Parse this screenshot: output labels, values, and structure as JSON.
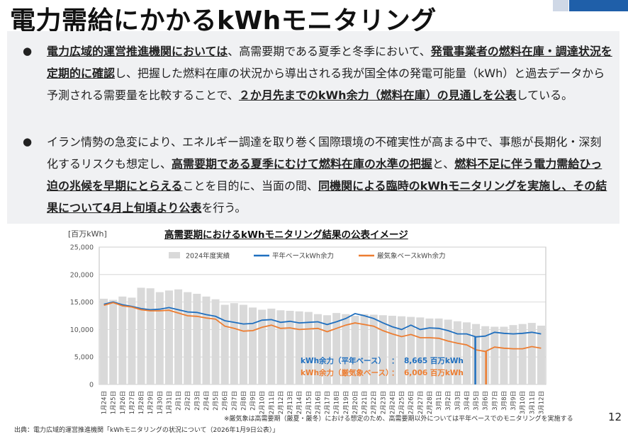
{
  "page_title": "電力需給にかかるkWhモニタリング",
  "bullets": [
    [
      {
        "t": "電力広域的運営推進機関においては",
        "b": true
      },
      {
        "t": "、高需要期である夏季と冬季において、",
        "b": false
      },
      {
        "t": "発電事業者の燃料在庫・調達状況を定期的に確認",
        "b": true
      },
      {
        "t": "し、把握した燃料在庫の状況から導出される我が国全体の発電可能量（kWh）と過去データから予測される需要量を比較することで、",
        "b": false
      },
      {
        "t": "２か月先までのkWh余力（燃料在庫）の見通しを公表",
        "b": true
      },
      {
        "t": "している。",
        "b": false
      }
    ],
    [
      {
        "t": "イラン情勢の急変により、エネルギー調達を取り巻く国際環境の不確実性が高まる中で、事態が長期化・深刻化するリスクも想定し、",
        "b": false
      },
      {
        "t": "高需要期である夏季にむけて燃料在庫の水準の把握",
        "b": true
      },
      {
        "t": "と、",
        "b": false
      },
      {
        "t": "燃料不足に伴う電力需給ひっ迫の兆候を早期にとらえる",
        "b": true
      },
      {
        "t": "ことを目的に、当面の間、",
        "b": false
      },
      {
        "t": "同機関による臨時のkWhモニタリングを実施し、その結果について4月上旬頃より公表",
        "b": true
      },
      {
        "t": "を行う。",
        "b": false
      }
    ]
  ],
  "bullet_symbol": "●",
  "chart_data": {
    "type": "bar",
    "title": "高需要期におけるkWhモニタリング結果の公表イメージ",
    "unit_label": "[百万kWh]",
    "ylim": [
      0,
      25000
    ],
    "yticks": [
      "0",
      "5,000",
      "10,000",
      "15,000",
      "20,000",
      "25,000"
    ],
    "grid": true,
    "legend_position": "top",
    "categories": [
      "1月24日",
      "1月25日",
      "1月26日",
      "1月27日",
      "1月28日",
      "1月29日",
      "1月30日",
      "1月31日",
      "2月1日",
      "2月2日",
      "2月3日",
      "2月4日",
      "2月5日",
      "2月6日",
      "2月7日",
      "2月8日",
      "2月9日",
      "2月10日",
      "2月11日",
      "2月12日",
      "2月13日",
      "2月14日",
      "2月15日",
      "2月16日",
      "2月17日",
      "2月18日",
      "2月19日",
      "2月20日",
      "2月21日",
      "2月22日",
      "2月23日",
      "2月24日",
      "2月25日",
      "2月26日",
      "2月27日",
      "2月28日",
      "3月1日",
      "3月2日",
      "3月3日",
      "3月4日",
      "3月5日",
      "3月6日",
      "3月7日",
      "3月8日",
      "3月9日",
      "3月10日",
      "3月11日",
      "3月12日"
    ],
    "series": [
      {
        "name": "2024年度実績",
        "kind": "bar",
        "color": "#d9d9d9",
        "values": [
          15600,
          15400,
          16000,
          15800,
          17600,
          17500,
          16800,
          17100,
          17300,
          16800,
          16500,
          16000,
          15500,
          14500,
          14800,
          14500,
          14000,
          13600,
          13800,
          13500,
          13400,
          13300,
          13200,
          12800,
          12600,
          13000,
          12800,
          12500,
          12800,
          12700,
          12600,
          12500,
          12400,
          12300,
          12200,
          12000,
          12000,
          11800,
          11500,
          11300,
          11000,
          10600,
          10500,
          10500,
          10800,
          11000,
          11200,
          10700
        ]
      },
      {
        "name": "平年ベースkWh余力",
        "kind": "line",
        "color": "#1f6fbf",
        "values": [
          14600,
          15000,
          14500,
          14200,
          13800,
          13600,
          13700,
          14000,
          13600,
          13200,
          13100,
          12700,
          12400,
          11600,
          11300,
          11000,
          11100,
          11700,
          11800,
          11300,
          11500,
          11200,
          11300,
          11400,
          10900,
          11400,
          12000,
          12900,
          12500,
          12000,
          11200,
          10500,
          10000,
          10800,
          10000,
          10300,
          10200,
          9800,
          9200,
          9200,
          8665,
          8800,
          9500,
          9300,
          9200,
          9300,
          9500,
          9200
        ]
      },
      {
        "name": "厳気象ベースkWh余力",
        "kind": "line",
        "color": "#ed7d31",
        "values": [
          14400,
          14900,
          14300,
          14100,
          13600,
          13400,
          13400,
          13500,
          13000,
          12500,
          12400,
          12100,
          11900,
          10600,
          10200,
          9700,
          9800,
          10400,
          10800,
          10200,
          10300,
          10000,
          10100,
          10200,
          9600,
          10200,
          10800,
          11200,
          10900,
          10600,
          9800,
          9200,
          8700,
          9100,
          8500,
          8500,
          8400,
          7900,
          7500,
          7200,
          6300,
          6006,
          6800,
          6600,
          6500,
          6500,
          6900,
          6600
        ]
      }
    ],
    "callouts": [
      {
        "label": "kWh余力（平年ベース）",
        "sep": "：",
        "value": "8,665 百万kWh",
        "color": "#1f6fbf",
        "index": 40
      },
      {
        "label": "kWh余力（厳気象ベース）",
        "sep": "：",
        "value": "6,006 百万kWh",
        "color": "#ed7d31",
        "index": 41
      }
    ]
  },
  "footnote": "※厳気象は高需要期（厳夏・厳冬）における想定のため、高需要期以外については平年ベースでのモニタリングを実施する",
  "source": "出典：電力広域的運営推進機関「kWhモニタリングの状況について（2026年1月9日公表）」",
  "page_number": "12"
}
